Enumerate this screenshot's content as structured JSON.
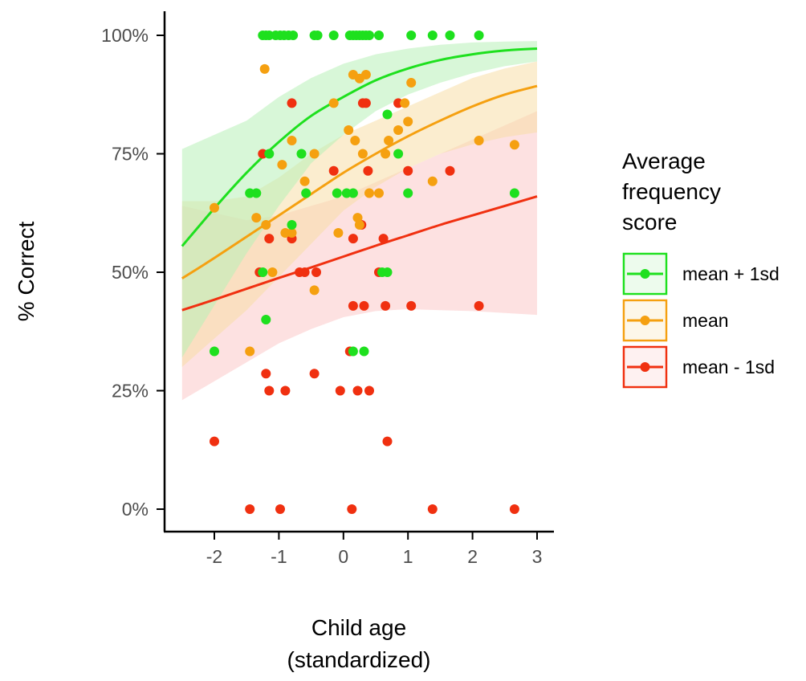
{
  "chart_data": {
    "type": "scatter",
    "xlabel": "Child age",
    "xlabel_line2": "(standardized)",
    "ylabel": "% Correct",
    "xlim": [
      -2.55,
      3.0
    ],
    "ylim": [
      -0.05,
      1.05
    ],
    "x_ticks": [
      -2,
      -1,
      0,
      1,
      2,
      3
    ],
    "x_tick_labels": [
      "-2",
      "-1",
      "0",
      "1",
      "2",
      "3"
    ],
    "y_ticks": [
      0,
      0.25,
      0.5,
      0.75,
      1.0
    ],
    "y_tick_labels": [
      "0%",
      "25%",
      "50%",
      "75%",
      "100%"
    ],
    "grid": false,
    "legend": {
      "title_lines": [
        "Average",
        "frequency",
        "score"
      ],
      "position": "right"
    },
    "series": [
      {
        "name": "mean + 1sd",
        "color": "#1ee01e",
        "band_color": "#b8f0b8",
        "fit": {
          "x": [
            -2.5,
            -2.0,
            -1.5,
            -1.0,
            -0.5,
            0.0,
            0.5,
            1.0,
            1.5,
            2.0,
            2.5,
            3.0
          ],
          "y": [
            0.555,
            0.635,
            0.71,
            0.775,
            0.83,
            0.87,
            0.905,
            0.93,
            0.948,
            0.96,
            0.968,
            0.972
          ],
          "lower": [
            0.32,
            0.43,
            0.54,
            0.64,
            0.73,
            0.79,
            0.84,
            0.875,
            0.9,
            0.92,
            0.935,
            0.945
          ],
          "upper": [
            0.76,
            0.79,
            0.82,
            0.87,
            0.91,
            0.94,
            0.96,
            0.972,
            0.98,
            0.985,
            0.987,
            0.988
          ]
        },
        "points": [
          [
            -1.25,
            1.0
          ],
          [
            -1.2,
            1.0
          ],
          [
            -1.15,
            1.0
          ],
          [
            -1.05,
            1.0
          ],
          [
            -0.98,
            1.0
          ],
          [
            -0.92,
            1.0
          ],
          [
            -0.85,
            1.0
          ],
          [
            -0.78,
            1.0
          ],
          [
            -0.45,
            1.0
          ],
          [
            -0.4,
            1.0
          ],
          [
            -0.15,
            1.0
          ],
          [
            0.1,
            1.0
          ],
          [
            0.15,
            1.0
          ],
          [
            0.2,
            1.0
          ],
          [
            0.25,
            1.0
          ],
          [
            0.3,
            1.0
          ],
          [
            0.35,
            1.0
          ],
          [
            0.4,
            1.0
          ],
          [
            0.55,
            1.0
          ],
          [
            1.05,
            1.0
          ],
          [
            1.38,
            1.0
          ],
          [
            1.65,
            1.0
          ],
          [
            2.1,
            1.0
          ],
          [
            0.68,
            0.833
          ],
          [
            -1.15,
            0.75
          ],
          [
            -0.65,
            0.75
          ],
          [
            0.85,
            0.75
          ],
          [
            -1.45,
            0.667
          ],
          [
            -1.35,
            0.667
          ],
          [
            -0.58,
            0.667
          ],
          [
            -0.1,
            0.667
          ],
          [
            0.05,
            0.667
          ],
          [
            0.15,
            0.667
          ],
          [
            1.0,
            0.667
          ],
          [
            2.65,
            0.667
          ],
          [
            -0.8,
            0.6
          ],
          [
            -1.25,
            0.5
          ],
          [
            0.6,
            0.5
          ],
          [
            0.68,
            0.5
          ],
          [
            -1.2,
            0.4
          ],
          [
            -2.0,
            0.333
          ],
          [
            0.15,
            0.333
          ],
          [
            0.32,
            0.333
          ]
        ]
      },
      {
        "name": "mean",
        "color": "#f5a010",
        "band_color": "#f7dfa8",
        "fit": {
          "x": [
            -2.5,
            -2.0,
            -1.5,
            -1.0,
            -0.5,
            0.0,
            0.5,
            1.0,
            1.5,
            2.0,
            2.5,
            3.0
          ],
          "y": [
            0.487,
            0.53,
            0.575,
            0.62,
            0.665,
            0.71,
            0.75,
            0.787,
            0.82,
            0.85,
            0.875,
            0.893
          ],
          "lower": [
            0.3,
            0.36,
            0.42,
            0.49,
            0.56,
            0.63,
            0.68,
            0.72,
            0.75,
            0.77,
            0.785,
            0.795
          ],
          "upper": [
            0.65,
            0.65,
            0.66,
            0.7,
            0.75,
            0.79,
            0.82,
            0.85,
            0.88,
            0.91,
            0.93,
            0.945
          ]
        },
        "points": [
          [
            -1.22,
            0.929
          ],
          [
            0.15,
            0.917
          ],
          [
            0.25,
            0.909
          ],
          [
            0.35,
            0.917
          ],
          [
            1.05,
            0.9
          ],
          [
            -0.15,
            0.857
          ],
          [
            0.95,
            0.857
          ],
          [
            1.0,
            0.818
          ],
          [
            0.85,
            0.8
          ],
          [
            0.08,
            0.8
          ],
          [
            0.18,
            0.778
          ],
          [
            -0.8,
            0.778
          ],
          [
            2.1,
            0.778
          ],
          [
            2.65,
            0.769
          ],
          [
            0.7,
            0.778
          ],
          [
            -0.95,
            0.727
          ],
          [
            -0.45,
            0.75
          ],
          [
            0.3,
            0.75
          ],
          [
            0.65,
            0.75
          ],
          [
            -0.6,
            0.692
          ],
          [
            1.38,
            0.692
          ],
          [
            0.4,
            0.667
          ],
          [
            0.55,
            0.667
          ],
          [
            -1.35,
            0.615
          ],
          [
            0.22,
            0.615
          ],
          [
            -1.2,
            0.6
          ],
          [
            0.25,
            0.6
          ],
          [
            -0.9,
            0.583
          ],
          [
            -0.8,
            0.583
          ],
          [
            -0.08,
            0.583
          ],
          [
            -1.1,
            0.5
          ],
          [
            -0.45,
            0.462
          ],
          [
            -2.0,
            0.636
          ],
          [
            -1.45,
            0.333
          ]
        ]
      },
      {
        "name": "mean - 1sd",
        "color": "#f03010",
        "band_color": "#fcc8c8",
        "fit": {
          "x": [
            -2.5,
            -2.0,
            -1.5,
            -1.0,
            -0.5,
            0.0,
            0.5,
            1.0,
            1.5,
            2.0,
            2.5,
            3.0
          ],
          "y": [
            0.42,
            0.442,
            0.465,
            0.488,
            0.51,
            0.533,
            0.556,
            0.578,
            0.6,
            0.62,
            0.64,
            0.66
          ],
          "lower": [
            0.23,
            0.27,
            0.31,
            0.35,
            0.38,
            0.405,
            0.418,
            0.422,
            0.42,
            0.418,
            0.414,
            0.41
          ],
          "upper": [
            0.64,
            0.625,
            0.61,
            0.62,
            0.64,
            0.66,
            0.69,
            0.72,
            0.75,
            0.78,
            0.81,
            0.84
          ]
        },
        "points": [
          [
            -0.8,
            0.857
          ],
          [
            0.3,
            0.857
          ],
          [
            0.35,
            0.857
          ],
          [
            0.85,
            0.857
          ],
          [
            -1.25,
            0.75
          ],
          [
            -0.15,
            0.714
          ],
          [
            0.38,
            0.714
          ],
          [
            1.0,
            0.714
          ],
          [
            1.65,
            0.714
          ],
          [
            0.28,
            0.6
          ],
          [
            -1.15,
            0.571
          ],
          [
            -0.8,
            0.571
          ],
          [
            0.15,
            0.571
          ],
          [
            0.62,
            0.571
          ],
          [
            -1.3,
            0.5
          ],
          [
            -0.68,
            0.5
          ],
          [
            -0.6,
            0.5
          ],
          [
            -0.42,
            0.5
          ],
          [
            0.55,
            0.5
          ],
          [
            0.15,
            0.429
          ],
          [
            0.32,
            0.429
          ],
          [
            0.65,
            0.429
          ],
          [
            1.05,
            0.429
          ],
          [
            2.1,
            0.429
          ],
          [
            0.1,
            0.333
          ],
          [
            -1.2,
            0.286
          ],
          [
            -0.45,
            0.286
          ],
          [
            -1.15,
            0.25
          ],
          [
            -0.9,
            0.25
          ],
          [
            -0.05,
            0.25
          ],
          [
            0.22,
            0.25
          ],
          [
            0.4,
            0.25
          ],
          [
            -2.0,
            0.143
          ],
          [
            0.68,
            0.143
          ],
          [
            -1.45,
            0.0
          ],
          [
            -0.98,
            0.0
          ],
          [
            0.13,
            0.0
          ],
          [
            1.38,
            0.0
          ],
          [
            2.65,
            0.0
          ]
        ]
      }
    ]
  }
}
